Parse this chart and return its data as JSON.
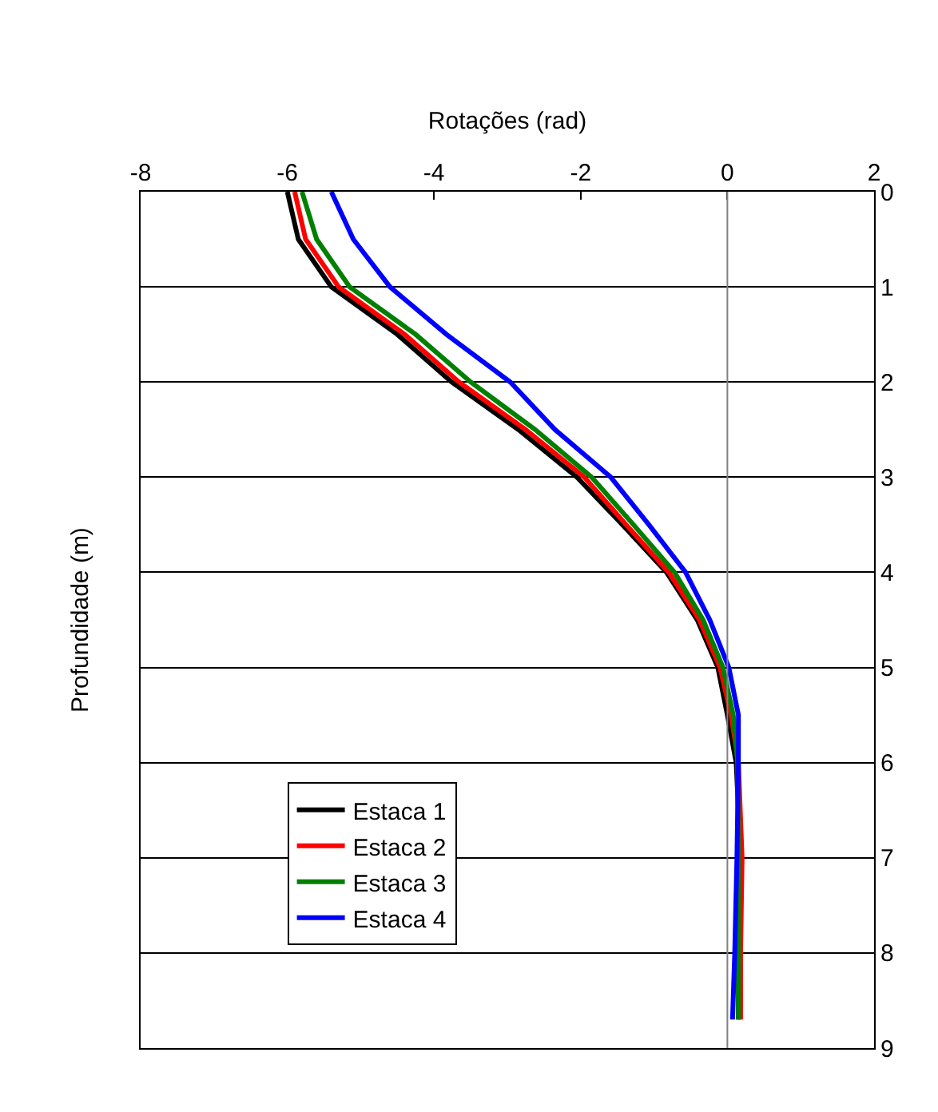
{
  "chart_data": {
    "type": "line",
    "xlabel": "Rotações (rad)",
    "ylabel": "Profundidade (m)",
    "xlim": [
      -8,
      2
    ],
    "xticks": [
      -8,
      -6,
      -4,
      -2,
      0,
      2
    ],
    "ylim": [
      9,
      0
    ],
    "yticks": [
      0,
      1,
      2,
      3,
      4,
      5,
      6,
      7,
      8,
      9
    ],
    "grid": "y",
    "legend": "bottom left",
    "marker": "none",
    "line_style": "solid",
    "ref_lines": [
      {
        "axis": "x",
        "value": 0,
        "label": null,
        "color": "#808080"
      }
    ],
    "series": [
      {
        "name": "Estaca 1",
        "color": "#000000",
        "x": [
          -6.0,
          -5.85,
          -5.4,
          -4.5,
          -3.76,
          -2.85,
          -2.05,
          -1.43,
          -0.83,
          -0.41,
          -0.13,
          0.0,
          0.12,
          0.18,
          0.15,
          0.15
        ],
        "values": [
          0,
          0.5,
          1,
          1.5,
          2,
          2.5,
          3,
          3.5,
          4,
          4.5,
          5,
          5.5,
          6,
          7,
          8,
          8.7
        ]
      },
      {
        "name": "Estaca 2",
        "color": "#ff0000",
        "x": [
          -5.9,
          -5.75,
          -5.3,
          -4.4,
          -3.66,
          -2.75,
          -1.95,
          -1.38,
          -0.8,
          -0.38,
          -0.1,
          0.05,
          0.15,
          0.2,
          0.18,
          0.18
        ],
        "values": [
          0,
          0.5,
          1,
          1.5,
          2,
          2.5,
          3,
          3.5,
          4,
          4.5,
          5,
          5.5,
          6,
          7,
          8,
          8.7
        ]
      },
      {
        "name": "Estaca 3",
        "color": "#008000",
        "x": [
          -5.8,
          -5.6,
          -5.15,
          -4.25,
          -3.5,
          -2.62,
          -1.85,
          -1.28,
          -0.72,
          -0.33,
          -0.06,
          0.08,
          0.14,
          0.15,
          0.15,
          0.15
        ],
        "values": [
          0,
          0.5,
          1,
          1.5,
          2,
          2.5,
          3,
          3.5,
          4,
          4.5,
          5,
          5.5,
          6,
          7,
          8,
          8.7
        ]
      },
      {
        "name": "Estaca 4",
        "color": "#0000ff",
        "x": [
          -5.4,
          -5.1,
          -4.6,
          -3.83,
          -2.96,
          -2.35,
          -1.59,
          -1.07,
          -0.57,
          -0.24,
          0.02,
          0.15,
          0.15,
          0.13,
          0.1,
          0.07
        ],
        "values": [
          0,
          0.5,
          1,
          1.5,
          2,
          2.5,
          3,
          3.5,
          4,
          4.5,
          5,
          5.5,
          6,
          7,
          8,
          8.7
        ]
      }
    ]
  }
}
